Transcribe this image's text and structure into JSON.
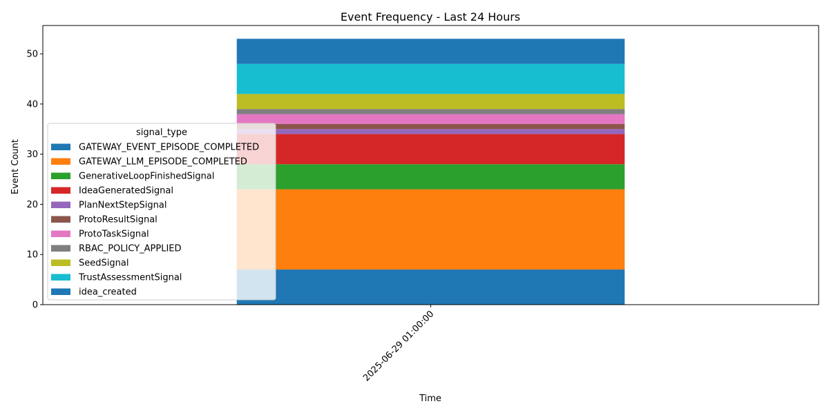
{
  "chart_data": {
    "type": "bar",
    "stacked": true,
    "title": "Event Frequency - Last 24 Hours",
    "xlabel": "Time",
    "ylabel": "Event Count",
    "categories": [
      "2025-06-29 01:00:00"
    ],
    "ylim": [
      0,
      55.65
    ],
    "yticks": [
      0,
      10,
      20,
      30,
      40,
      50
    ],
    "grid": false,
    "legend": {
      "title": "signal_type",
      "placement": "center-left"
    },
    "series": [
      {
        "name": "GATEWAY_EVENT_EPISODE_COMPLETED",
        "color": "#1f77b4",
        "values": [
          7
        ]
      },
      {
        "name": "GATEWAY_LLM_EPISODE_COMPLETED",
        "color": "#ff7f0e",
        "values": [
          16
        ]
      },
      {
        "name": "GenerativeLoopFinishedSignal",
        "color": "#2ca02c",
        "values": [
          5
        ]
      },
      {
        "name": "IdeaGeneratedSignal",
        "color": "#d62728",
        "values": [
          6
        ]
      },
      {
        "name": "PlanNextStepSignal",
        "color": "#9467bd",
        "values": [
          1
        ]
      },
      {
        "name": "ProtoResultSignal",
        "color": "#8c564b",
        "values": [
          1
        ]
      },
      {
        "name": "ProtoTaskSignal",
        "color": "#e377c2",
        "values": [
          2
        ]
      },
      {
        "name": "RBAC_POLICY_APPLIED",
        "color": "#7f7f7f",
        "values": [
          1
        ]
      },
      {
        "name": "SeedSignal",
        "color": "#bcbd22",
        "values": [
          3
        ]
      },
      {
        "name": "TrustAssessmentSignal",
        "color": "#17becf",
        "values": [
          6
        ]
      },
      {
        "name": "idea_created",
        "color": "#1f77b4",
        "values": [
          5
        ]
      }
    ]
  }
}
